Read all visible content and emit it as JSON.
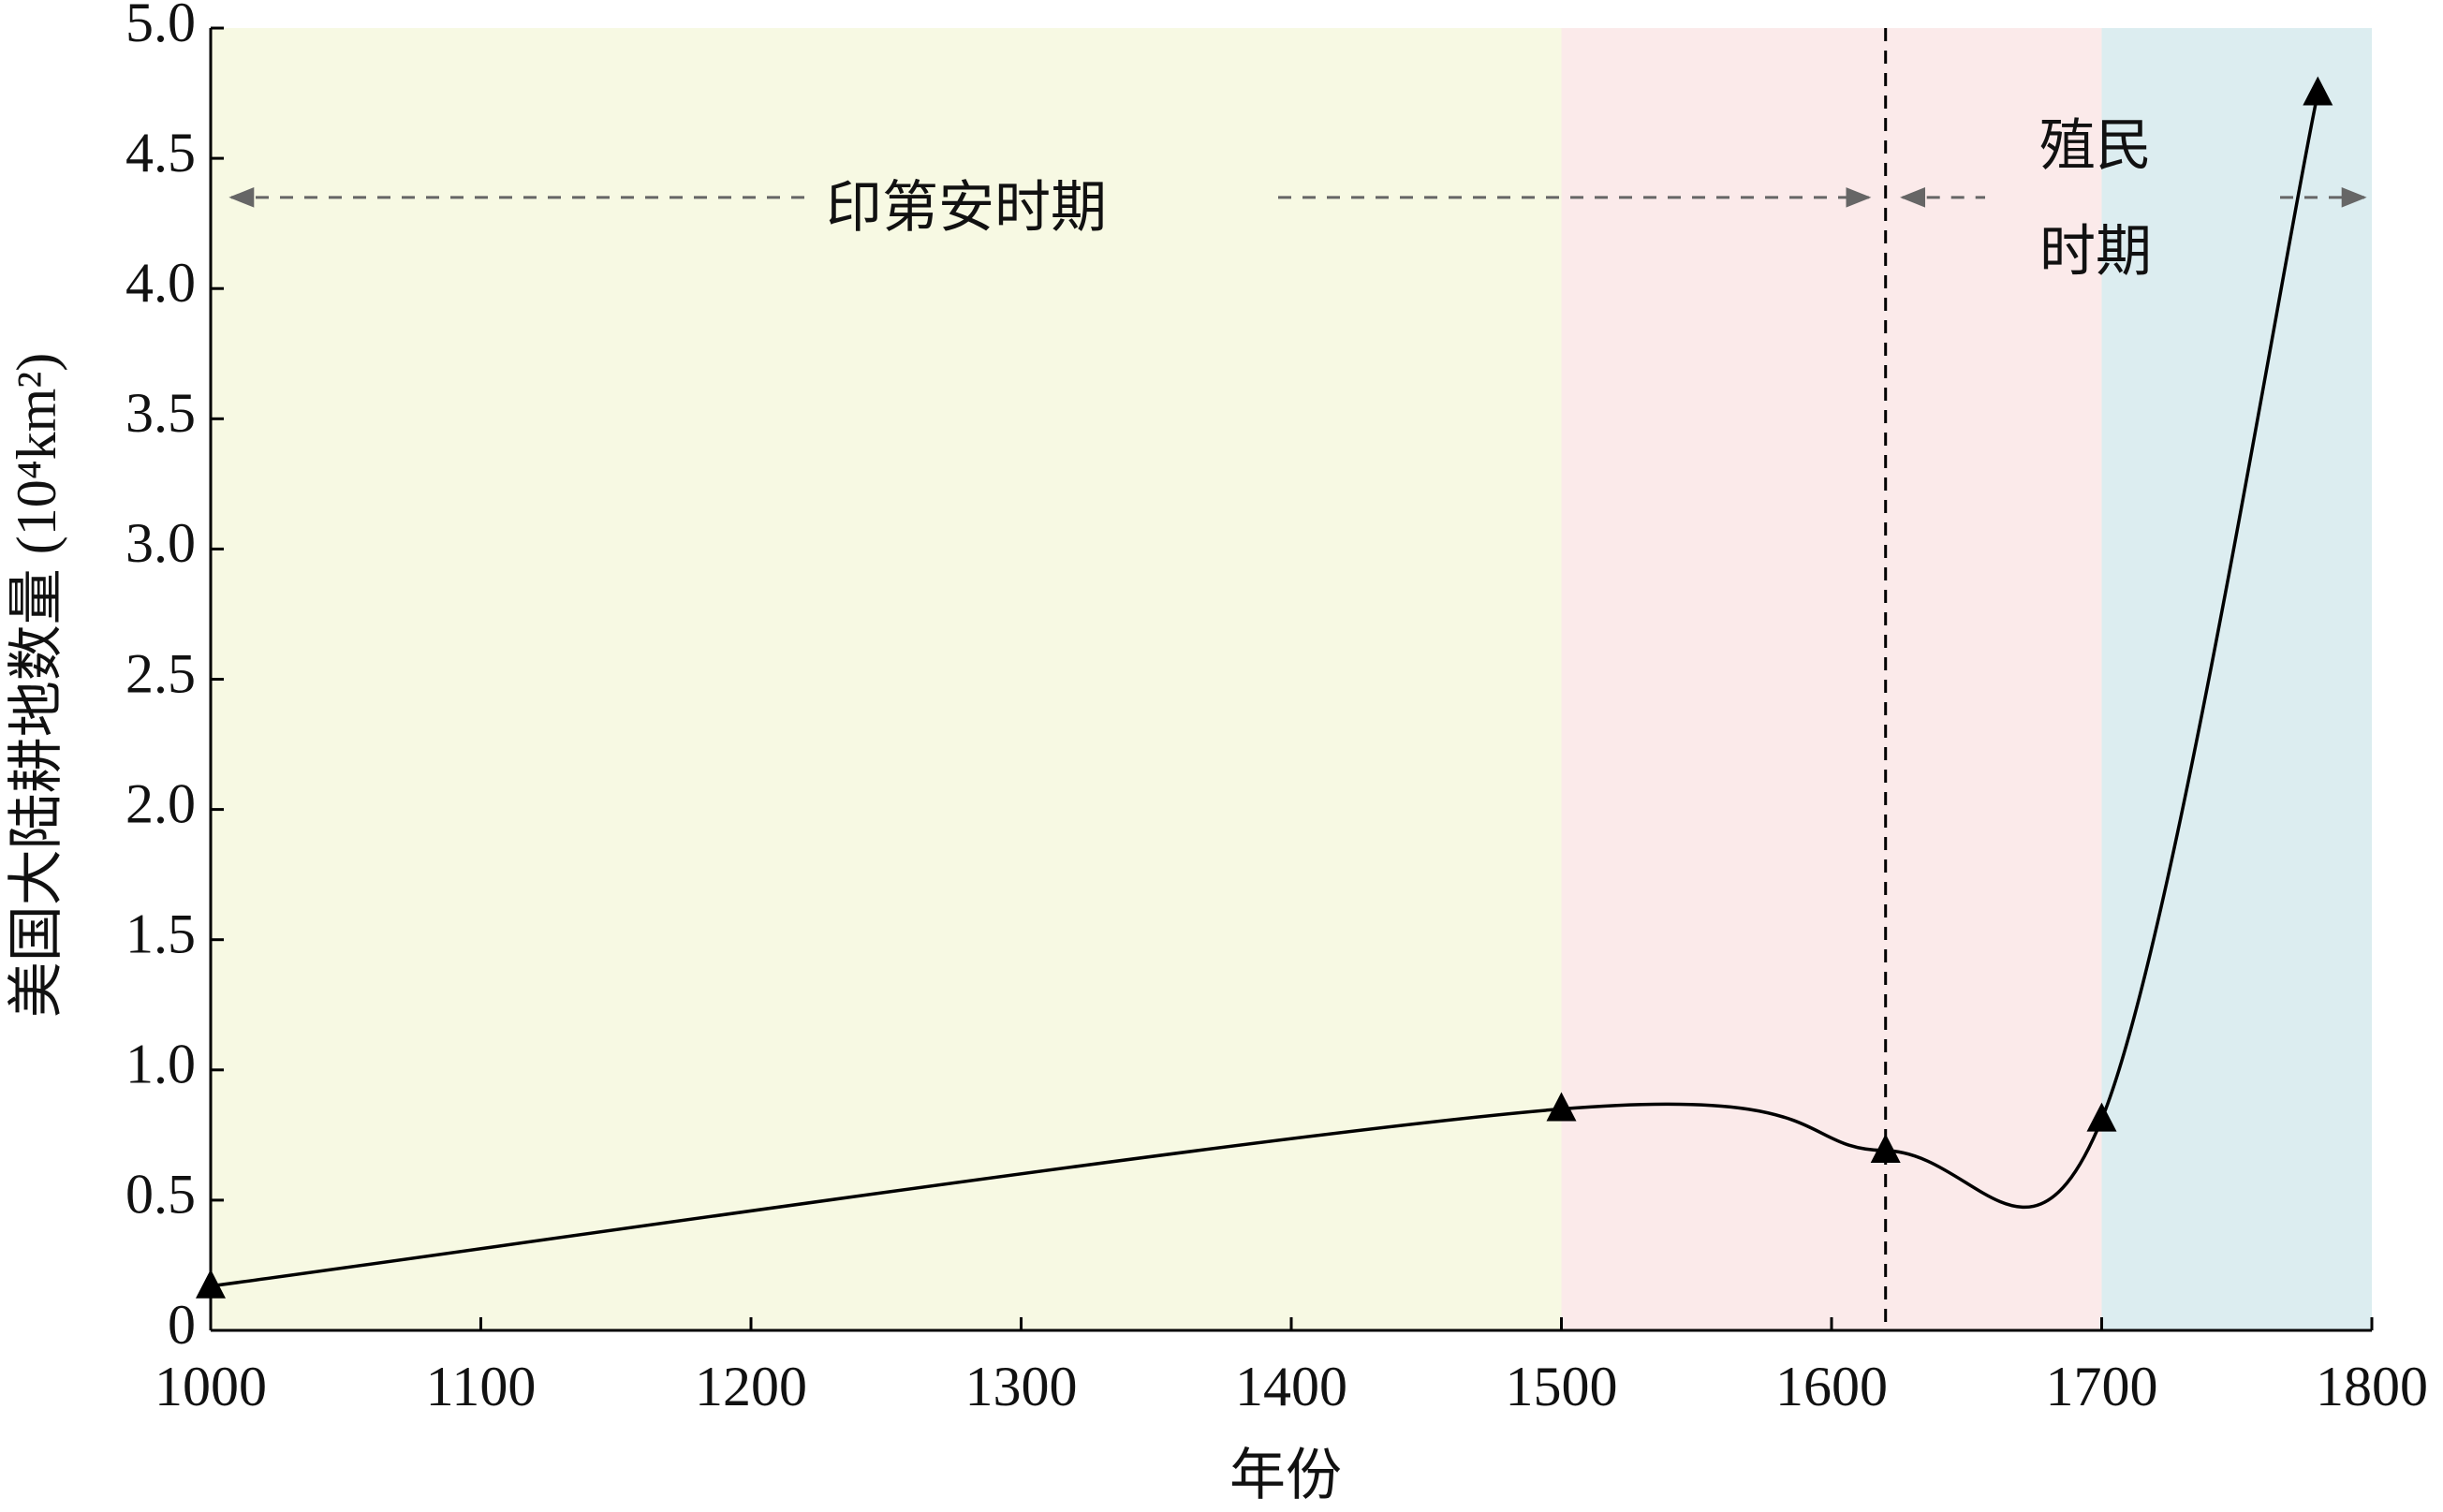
{
  "chart_data": {
    "type": "line",
    "x_label": "年份",
    "y_label": "美国大陆耕地数量 (10⁴km²)",
    "x": [
      1000,
      1500,
      1620,
      1700,
      1780
    ],
    "series": [
      {
        "color": "#000000",
        "values": [
          0.17,
          0.85,
          0.69,
          0.81,
          4.75
        ]
      }
    ],
    "xlim": [
      1000,
      1800
    ],
    "xticks": [
      1000,
      1100,
      1200,
      1300,
      1400,
      1500,
      1600,
      1700,
      1800
    ],
    "ylim": [
      0,
      5
    ],
    "yticks": [
      0,
      0.5,
      {
        "value": 1,
        "label": "1.0"
      },
      1.5,
      {
        "value": 2,
        "label": "2.0"
      },
      2.5,
      {
        "value": 3,
        "label": "3.0"
      },
      3.5,
      {
        "value": 4,
        "label": "4.0"
      },
      4.5,
      {
        "value": 5,
        "label": "5.0"
      }
    ],
    "regions": [
      {
        "from": 1000,
        "to": 1500,
        "color": "#f7f9e3"
      },
      {
        "from": 1500,
        "to": 1700,
        "color": "#fbeaea"
      },
      {
        "from": 1700,
        "to": 1800,
        "color": "#dcedf0"
      }
    ],
    "vline": 1620,
    "annotations": [
      "印第安时期",
      "殖民",
      "时期"
    ]
  }
}
